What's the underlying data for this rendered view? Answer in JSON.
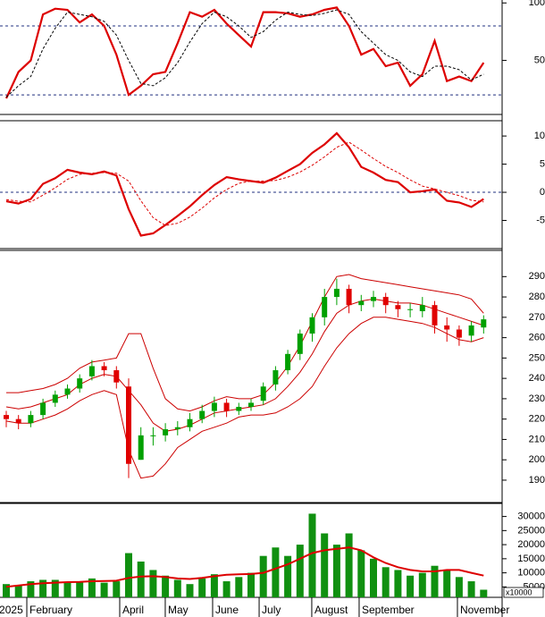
{
  "chart_data": [
    {
      "type": "line",
      "ylim": [
        3,
        101
      ],
      "yticks": [
        50,
        100
      ],
      "hlines": [
        80,
        20
      ],
      "series": [
        {
          "color": "#dd0000",
          "values": [
            17,
            40,
            50,
            90,
            95,
            94,
            83,
            90,
            80,
            55,
            20,
            28,
            38,
            40,
            65,
            92,
            88,
            94,
            82,
            72,
            62,
            92,
            92,
            91,
            88,
            90,
            94,
            96,
            80,
            55,
            60,
            45,
            48,
            28,
            38,
            67,
            32,
            36,
            32,
            48
          ]
        },
        {
          "color": "#000000",
          "dashed": true,
          "values": [
            18,
            28,
            36,
            60,
            78,
            92,
            90,
            88,
            84,
            72,
            50,
            30,
            28,
            35,
            48,
            66,
            82,
            92,
            88,
            80,
            70,
            75,
            85,
            92,
            90,
            89,
            91,
            94,
            90,
            75,
            65,
            55,
            50,
            40,
            36,
            45,
            45,
            42,
            33,
            38
          ]
        }
      ]
    },
    {
      "type": "line",
      "ylim": [
        -10,
        12.4
      ],
      "yticks": [
        -5,
        0,
        5,
        10
      ],
      "hlines": [
        0
      ],
      "series": [
        {
          "color": "#dd0000",
          "values": [
            -1.6,
            -2,
            -1.2,
            1.5,
            2.5,
            4,
            3.5,
            3.2,
            3.7,
            3,
            -3,
            -7.7,
            -7.3,
            -5.8,
            -4.2,
            -2.5,
            -0.5,
            1.3,
            2.7,
            2.3,
            2,
            1.7,
            2.6,
            3.8,
            5,
            7,
            8.5,
            10.5,
            8,
            4.5,
            3.5,
            2.2,
            1.8,
            0,
            0.2,
            0.5,
            -1.5,
            -1.8,
            -2.6,
            -1.2
          ]
        },
        {
          "color": "#dd0000",
          "dashed": true,
          "values": [
            -1.3,
            -1.6,
            -1.7,
            -0.5,
            0.8,
            2.3,
            3.2,
            3.4,
            3.5,
            3.4,
            2,
            -1.5,
            -4.5,
            -5.9,
            -5.5,
            -4.4,
            -2.8,
            -1,
            0.5,
            1.6,
            2,
            2,
            2.1,
            2.7,
            3.6,
            4.8,
            6.3,
            8,
            8.9,
            7.5,
            6,
            4.6,
            3.5,
            2.2,
            1.1,
            0.6,
            0,
            -0.6,
            -1.4,
            -1.7
          ]
        }
      ]
    },
    {
      "type": "candlestick",
      "ylim": [
        179,
        302
      ],
      "yticks": [
        190,
        200,
        210,
        220,
        230,
        240,
        250,
        260,
        270,
        280,
        290
      ],
      "up_color": "#00a000",
      "down_color": "#e00000",
      "open": [
        222,
        220,
        218,
        222,
        228,
        232,
        235,
        241,
        246,
        244,
        236,
        200,
        212,
        212,
        215,
        216,
        220,
        224,
        228,
        224,
        226,
        229,
        237,
        244,
        252,
        262,
        270,
        280,
        284,
        276,
        278,
        280,
        276,
        274,
        273,
        276,
        266,
        264,
        261,
        265
      ],
      "high": [
        224,
        222,
        224,
        230,
        234,
        237,
        242,
        249,
        248,
        246,
        240,
        216,
        216,
        218,
        219,
        223,
        227,
        231,
        230,
        228,
        230,
        238,
        246,
        254,
        264,
        272,
        284,
        289,
        286,
        281,
        283,
        282,
        278,
        277,
        280,
        278,
        270,
        266,
        268,
        271
      ],
      "low": [
        216,
        215,
        216,
        220,
        226,
        230,
        233,
        239,
        241,
        235,
        191,
        200,
        207,
        209,
        212,
        214,
        218,
        221,
        221,
        222,
        224,
        227,
        234,
        242,
        249,
        258,
        266,
        276,
        272,
        273,
        275,
        272,
        270,
        270,
        270,
        262,
        258,
        256,
        258,
        262
      ],
      "close": [
        220,
        218,
        222,
        228,
        232,
        235,
        240,
        246,
        244,
        238,
        198,
        212,
        212,
        215,
        216,
        220,
        224,
        228,
        224,
        226,
        228,
        236,
        244,
        252,
        262,
        270,
        280,
        284,
        276,
        278,
        280,
        276,
        274,
        274,
        276,
        266,
        264,
        260,
        266,
        269
      ],
      "series": [
        {
          "color": "#cc0000",
          "values": [
            233,
            233,
            234,
            235,
            237,
            240,
            245,
            248,
            249,
            250,
            262,
            262,
            245,
            230,
            225,
            224,
            226,
            229,
            231,
            230,
            230,
            232,
            238,
            246,
            256,
            268,
            280,
            290,
            291,
            289,
            288,
            287,
            286,
            285,
            284,
            283,
            282,
            281,
            279,
            272
          ]
        },
        {
          "color": "#cc0000",
          "values": [
            226,
            225,
            226,
            228,
            230,
            232,
            237,
            240,
            242,
            241,
            234,
            227,
            218,
            214,
            215,
            217,
            220,
            223,
            224,
            225,
            226,
            227,
            230,
            236,
            243,
            252,
            263,
            272,
            276,
            278,
            279,
            278,
            277,
            277,
            276,
            274,
            272,
            270,
            268,
            266
          ]
        },
        {
          "color": "#cc0000",
          "values": [
            219,
            218,
            218,
            220,
            222,
            225,
            229,
            232,
            234,
            232,
            205,
            191,
            192,
            198,
            206,
            210,
            214,
            216,
            218,
            221,
            222,
            222,
            223,
            226,
            230,
            236,
            246,
            255,
            262,
            267,
            270,
            270,
            269,
            268,
            267,
            265,
            262,
            259,
            258,
            260
          ]
        }
      ]
    },
    {
      "type": "bar",
      "ylim": [
        1300,
        34000
      ],
      "yticks": [
        5000,
        10000,
        15000,
        20000,
        25000,
        30000
      ],
      "color": "#109010",
      "unit_label": "x10000",
      "values": [
        6000,
        5500,
        7000,
        7500,
        7500,
        6500,
        7000,
        8000,
        6500,
        7000,
        17000,
        14000,
        11000,
        9000,
        7500,
        6000,
        8000,
        9500,
        7000,
        8500,
        10000,
        16000,
        19000,
        16000,
        20000,
        31000,
        24000,
        20000,
        24000,
        18000,
        15000,
        12000,
        11000,
        9000,
        10000,
        12500,
        11000,
        8500,
        7000,
        4000
      ],
      "series": [
        {
          "color": "#dd0000",
          "values": [
            5000,
            5500,
            6000,
            6300,
            6500,
            6700,
            6800,
            7000,
            7100,
            7200,
            8200,
            8700,
            8800,
            8500,
            8000,
            7800,
            8200,
            8800,
            9300,
            9500,
            9600,
            10000,
            11500,
            13000,
            15000,
            17000,
            18000,
            18500,
            19000,
            18000,
            15500,
            13500,
            12000,
            11000,
            10500,
            10500,
            11000,
            11000,
            10000,
            9000
          ]
        }
      ],
      "xticks": [
        {
          "value": -0.8,
          "label": "2025"
        },
        {
          "value": 1.68,
          "label": "February"
        },
        {
          "value": 9.27,
          "label": "April"
        },
        {
          "value": 12.99,
          "label": "May"
        },
        {
          "value": 16.86,
          "label": "June"
        },
        {
          "value": 20.66,
          "label": "July"
        },
        {
          "value": 24.96,
          "label": "August"
        },
        {
          "value": 28.83,
          "label": "September"
        },
        {
          "value": 36.86,
          "label": "November"
        }
      ]
    }
  ]
}
